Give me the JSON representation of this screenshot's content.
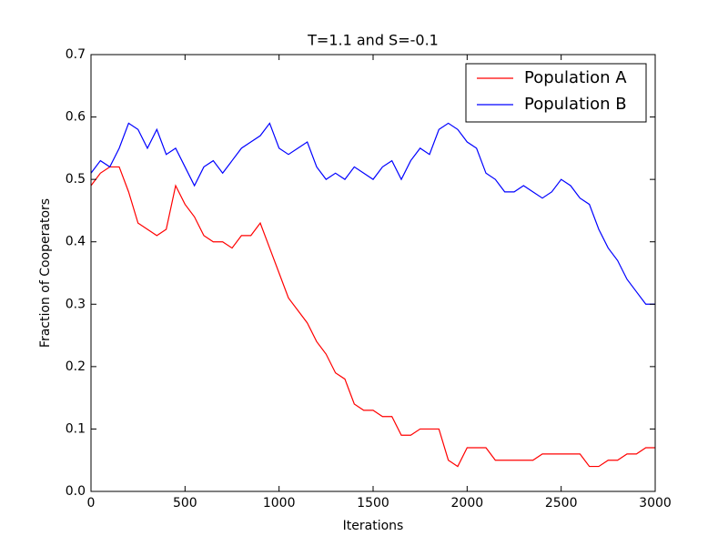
{
  "chart_data": {
    "type": "line",
    "title": "T=1.1 and S=-0.1",
    "xlabel": "Iterations",
    "ylabel": "Fraction of Cooperators",
    "x": [
      0,
      50,
      100,
      150,
      200,
      250,
      300,
      350,
      400,
      450,
      500,
      550,
      600,
      650,
      700,
      750,
      800,
      850,
      900,
      950,
      1000,
      1050,
      1100,
      1150,
      1200,
      1250,
      1300,
      1350,
      1400,
      1450,
      1500,
      1550,
      1600,
      1650,
      1700,
      1750,
      1800,
      1850,
      1900,
      1950,
      2000,
      2050,
      2100,
      2150,
      2200,
      2250,
      2300,
      2350,
      2400,
      2450,
      2500,
      2550,
      2600,
      2650,
      2700,
      2750,
      2800,
      2850,
      2900,
      2950,
      3000
    ],
    "series": [
      {
        "name": "Population A",
        "color": "#ff0000",
        "values": [
          0.49,
          0.51,
          0.52,
          0.52,
          0.48,
          0.43,
          0.42,
          0.41,
          0.42,
          0.49,
          0.46,
          0.44,
          0.41,
          0.4,
          0.4,
          0.39,
          0.41,
          0.41,
          0.43,
          0.39,
          0.35,
          0.31,
          0.29,
          0.27,
          0.24,
          0.22,
          0.19,
          0.18,
          0.14,
          0.13,
          0.13,
          0.12,
          0.12,
          0.09,
          0.09,
          0.1,
          0.1,
          0.1,
          0.05,
          0.04,
          0.07,
          0.07,
          0.07,
          0.05,
          0.05,
          0.05,
          0.05,
          0.05,
          0.06,
          0.06,
          0.06,
          0.06,
          0.06,
          0.04,
          0.04,
          0.05,
          0.05,
          0.06,
          0.06,
          0.07,
          0.07
        ]
      },
      {
        "name": "Population B",
        "color": "#0000ff",
        "values": [
          0.51,
          0.53,
          0.52,
          0.55,
          0.59,
          0.58,
          0.55,
          0.58,
          0.54,
          0.55,
          0.52,
          0.49,
          0.52,
          0.53,
          0.51,
          0.53,
          0.55,
          0.56,
          0.57,
          0.59,
          0.55,
          0.54,
          0.55,
          0.56,
          0.52,
          0.5,
          0.51,
          0.5,
          0.52,
          0.51,
          0.5,
          0.52,
          0.53,
          0.5,
          0.53,
          0.55,
          0.54,
          0.58,
          0.59,
          0.58,
          0.56,
          0.55,
          0.51,
          0.5,
          0.48,
          0.48,
          0.49,
          0.48,
          0.47,
          0.48,
          0.5,
          0.49,
          0.47,
          0.46,
          0.42,
          0.39,
          0.37,
          0.34,
          0.32,
          0.3,
          0.3
        ]
      }
    ],
    "xlim": [
      0,
      3000
    ],
    "xticks": [
      0,
      500,
      1000,
      1500,
      2000,
      2500,
      3000
    ],
    "ylim": [
      0,
      0.7
    ],
    "yticks": [
      {
        "value": 0,
        "label": "0.0"
      },
      0.1,
      0.2,
      0.3,
      0.4,
      0.5,
      0.6,
      0.7
    ],
    "legend": "upper right"
  }
}
